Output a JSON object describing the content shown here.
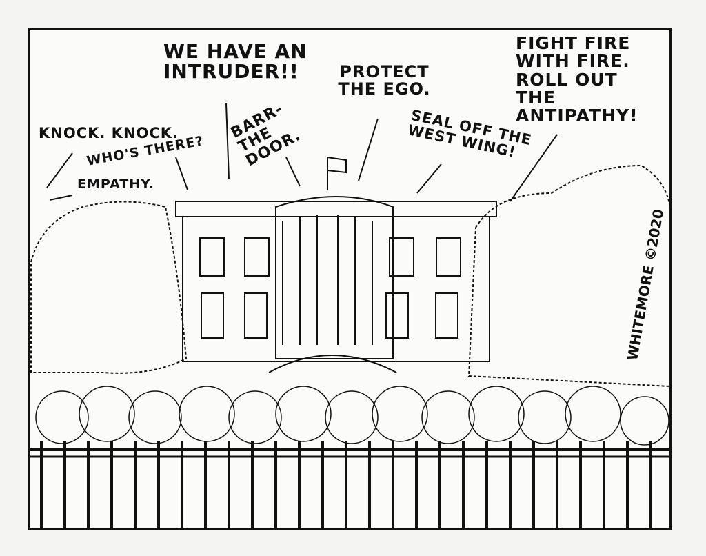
{
  "cartoon": {
    "captions": {
      "knock": "Knock. Knock.",
      "whos_there": "Who's there?",
      "empathy": "Empathy.",
      "intruder": "We have an intruder!!",
      "barr": "Barr-the door.",
      "ego": "Protect the ego.",
      "west_wing": "Seal off the west wing!",
      "fight_fire": "Fight fire with fire. Roll out the antipathy!"
    },
    "signature": "WHITEMORE ©2020",
    "colors": {
      "ink": "#111111",
      "paper": "#fbfbfa"
    }
  }
}
